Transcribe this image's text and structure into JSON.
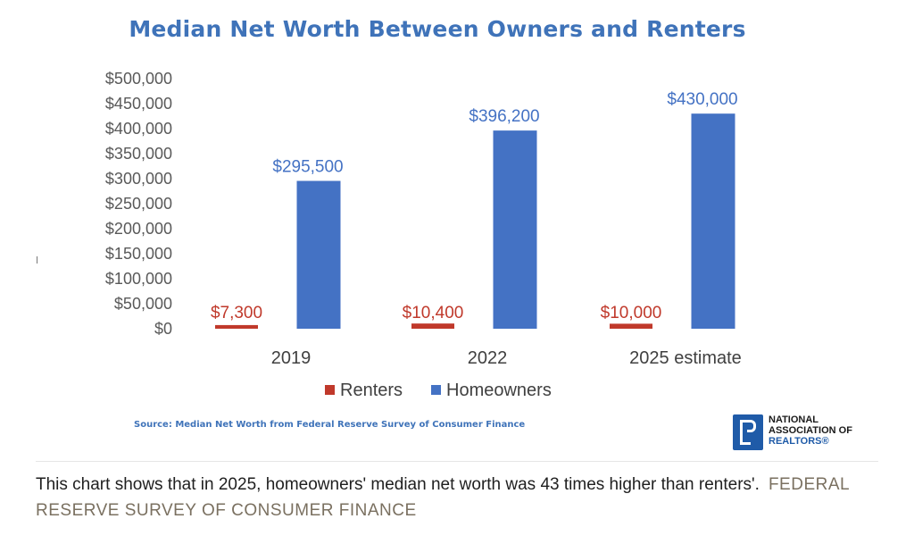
{
  "chart_data": {
    "type": "bar",
    "title": "Median Net Worth Between Owners and Renters",
    "categories": [
      "2019",
      "2022",
      "2025 estimate"
    ],
    "series": [
      {
        "name": "Renters",
        "values": [
          7300,
          10400,
          10000
        ],
        "labels": [
          "$7,300",
          "$10,400",
          "$10,000"
        ],
        "color": "#c0392b"
      },
      {
        "name": "Homeowners",
        "values": [
          295500,
          396200,
          430000
        ],
        "labels": [
          "$295,500",
          "$396,200",
          "$430,000"
        ],
        "color": "#4472c4"
      }
    ],
    "y_ticks": [
      "$0",
      "$50,000",
      "$100,000",
      "$150,000",
      "$200,000",
      "$250,000",
      "$300,000",
      "$350,000",
      "$400,000",
      "$450,000",
      "$500,000"
    ],
    "ylim": [
      0,
      500000
    ],
    "grid": false,
    "legend_position": "bottom",
    "source": "Source: Median Net Worth from Federal Reserve Survey of Consumer Finance"
  },
  "logo": {
    "line1": "NATIONAL",
    "line2": "ASSOCIATION OF",
    "line3": "REALTORS®",
    "brand_color": "#1f5ba8"
  },
  "caption": {
    "text": "This chart shows that in 2025, homeowners' median net worth was 43 times higher than renters'.",
    "credit": "FEDERAL RESERVE SURVEY OF CONSUMER FINANCE"
  }
}
